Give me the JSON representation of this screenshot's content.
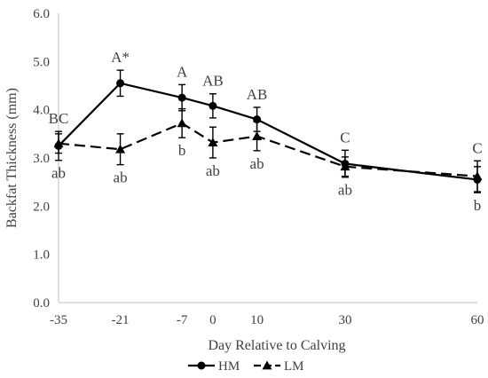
{
  "chart_data": {
    "type": "line",
    "title": "",
    "xlabel": "Day Relative to Calving",
    "ylabel": "Backfat Thickness  (mm)",
    "ylim": [
      0,
      6
    ],
    "xlim": [
      -35,
      60
    ],
    "yticks": [
      "0.0",
      "1.0",
      "2.0",
      "3.0",
      "4.0",
      "5.0",
      "6.0"
    ],
    "xticks": [
      "-35",
      "-21",
      "-7",
      "0",
      "10",
      "30",
      "60"
    ],
    "x": [
      -35,
      -21,
      -7,
      0,
      10,
      30,
      60
    ],
    "grid": false,
    "legend_position": "bottom",
    "series": [
      {
        "name": "HM",
        "marker": "circle",
        "line_style": "solid",
        "color": "#000000",
        "values": [
          3.25,
          4.55,
          4.25,
          4.08,
          3.8,
          2.88,
          2.55
        ],
        "errors": [
          0.3,
          0.27,
          0.27,
          0.25,
          0.25,
          0.28,
          0.27
        ],
        "labels": [
          "BC",
          "A*",
          "A",
          "AB",
          "AB",
          "C",
          "C"
        ]
      },
      {
        "name": "LM",
        "marker": "triangle",
        "line_style": "dashed",
        "color": "#000000",
        "values": [
          3.3,
          3.18,
          3.72,
          3.32,
          3.45,
          2.82,
          2.62
        ],
        "errors": [
          0.2,
          0.32,
          0.3,
          0.32,
          0.3,
          0.2,
          0.32
        ],
        "labels": [
          "ab",
          "ab",
          "b",
          "ab",
          "ab",
          "ab",
          "b"
        ]
      }
    ]
  }
}
